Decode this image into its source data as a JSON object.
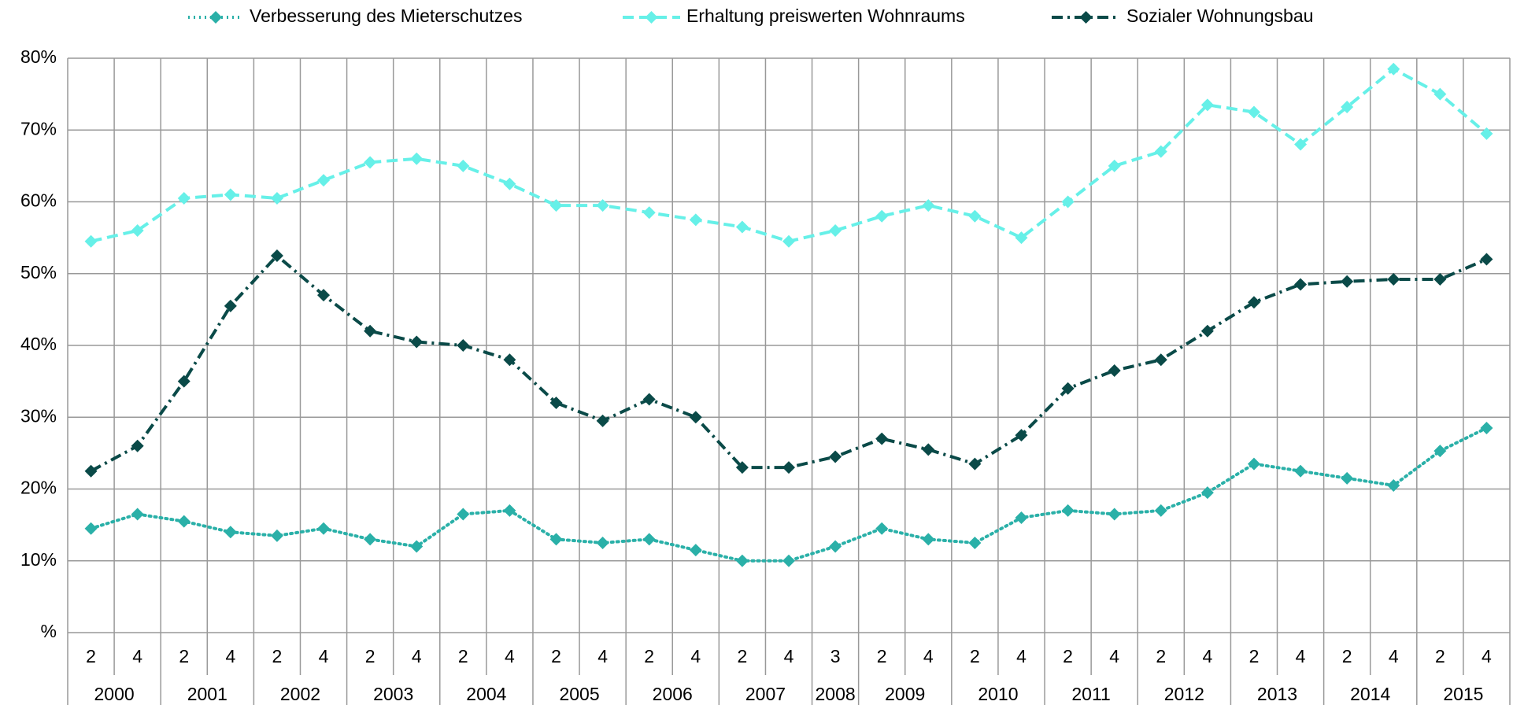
{
  "chart_data": {
    "type": "line",
    "categories": [
      {
        "quarter": "2",
        "year": "2000"
      },
      {
        "quarter": "4",
        "year": "2000"
      },
      {
        "quarter": "2",
        "year": "2001"
      },
      {
        "quarter": "4",
        "year": "2001"
      },
      {
        "quarter": "2",
        "year": "2002"
      },
      {
        "quarter": "4",
        "year": "2002"
      },
      {
        "quarter": "2",
        "year": "2003"
      },
      {
        "quarter": "4",
        "year": "2003"
      },
      {
        "quarter": "2",
        "year": "2004"
      },
      {
        "quarter": "4",
        "year": "2004"
      },
      {
        "quarter": "2",
        "year": "2005"
      },
      {
        "quarter": "4",
        "year": "2005"
      },
      {
        "quarter": "2",
        "year": "2006"
      },
      {
        "quarter": "4",
        "year": "2006"
      },
      {
        "quarter": "2",
        "year": "2007"
      },
      {
        "quarter": "4",
        "year": "2007"
      },
      {
        "quarter": "3",
        "year": "2008"
      },
      {
        "quarter": "2",
        "year": "2009"
      },
      {
        "quarter": "4",
        "year": "2009"
      },
      {
        "quarter": "2",
        "year": "2010"
      },
      {
        "quarter": "4",
        "year": "2010"
      },
      {
        "quarter": "2",
        "year": "2011"
      },
      {
        "quarter": "4",
        "year": "2011"
      },
      {
        "quarter": "2",
        "year": "2012"
      },
      {
        "quarter": "4",
        "year": "2012"
      },
      {
        "quarter": "2",
        "year": "2013"
      },
      {
        "quarter": "4",
        "year": "2013"
      },
      {
        "quarter": "2",
        "year": "2014"
      },
      {
        "quarter": "4",
        "year": "2014"
      },
      {
        "quarter": "2",
        "year": "2015"
      },
      {
        "quarter": "4",
        "year": "2015"
      }
    ],
    "series": [
      {
        "name": "Verbesserung des Mieterschutzes",
        "color": "#2ab0a8",
        "dash": "dotted",
        "values": [
          14.5,
          16.5,
          15.5,
          14,
          13.5,
          14.5,
          13,
          12,
          16.5,
          17,
          13,
          12.5,
          13,
          11.5,
          10,
          10,
          12,
          14.5,
          13,
          12.5,
          16,
          17,
          16.5,
          17,
          19.5,
          23.5,
          22.5,
          21.5,
          20.5,
          25.3,
          28.5
        ]
      },
      {
        "name": "Erhaltung preiswerten Wohnraums",
        "color": "#66f0e8",
        "dash": "dashed",
        "values": [
          54.5,
          56,
          60.5,
          61,
          60.5,
          63,
          65.5,
          66,
          65,
          62.5,
          59.5,
          59.5,
          58.5,
          57.5,
          56.5,
          54.5,
          56,
          58,
          59.5,
          58,
          55,
          60,
          65,
          67,
          73.5,
          72.5,
          68,
          73.2,
          78.5,
          75,
          69.5
        ]
      },
      {
        "name": "Sozialer Wohnungsbau",
        "color": "#0a4a48",
        "dash": "dashdot",
        "values": [
          22.5,
          26,
          35,
          45.5,
          52.5,
          47,
          42,
          40.5,
          40,
          38,
          32,
          29.5,
          32.5,
          30,
          23,
          23,
          24.5,
          27,
          25.5,
          23.5,
          27.5,
          34,
          36.5,
          38,
          42,
          46,
          48.5,
          48.9,
          49.2,
          49.2,
          52
        ]
      }
    ],
    "ylim": [
      0,
      80
    ],
    "yticks": [
      {
        "value": 0,
        "label": "%"
      },
      {
        "value": 10,
        "label": "10%"
      },
      {
        "value": 20,
        "label": "20%"
      },
      {
        "value": 30,
        "label": "30%"
      },
      {
        "value": 40,
        "label": "40%"
      },
      {
        "value": 50,
        "label": "50%"
      },
      {
        "value": 60,
        "label": "60%"
      },
      {
        "value": 70,
        "label": "70%"
      },
      {
        "value": 80,
        "label": "80%"
      }
    ],
    "grid": true,
    "legend": "top"
  }
}
